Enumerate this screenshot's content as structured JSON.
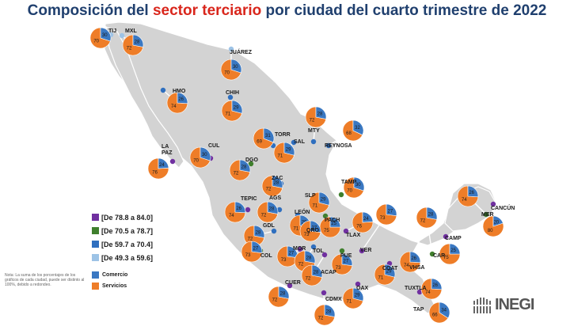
{
  "title": {
    "before": "Composición del ",
    "highlight": "sector terciario",
    "after": " por ciudad del cuarto trimestre de 2022"
  },
  "colors": {
    "comercio": "#3a78c2",
    "servicios": "#ee7d28",
    "land": "#d3d3d3",
    "range1": "#7030a0",
    "range2": "#3f7f2d",
    "range3": "#2f6fbf",
    "range4": "#9dc3e6"
  },
  "legend": {
    "ranges": [
      {
        "label": "[De 78.8 a 84.0]",
        "color": "#7030a0"
      },
      {
        "label": "[De 70.5 a 78.7]",
        "color": "#3f7f2d"
      },
      {
        "label": "[De 59.7 a 70.4]",
        "color": "#2f6fbf"
      },
      {
        "label": "[De 49.3 a 59.6]",
        "color": "#9dc3e6"
      }
    ],
    "series": [
      {
        "label": "Comercio",
        "color": "#3a78c2"
      },
      {
        "label": "Servicios",
        "color": "#ee7d28"
      }
    ]
  },
  "note": "Nota: La suma de los porcentajes de los gráficos de cada ciudad, puede ser distinto al 100%, debido a redondeo.",
  "logo": {
    "text": "INEGI"
  },
  "cities": [
    {
      "name": "TIJ",
      "comercio": 30,
      "servicios": 70,
      "dot": "#9dc3e6"
    },
    {
      "name": "MXL",
      "comercio": 28,
      "servicios": 72,
      "dot": "#9dc3e6"
    },
    {
      "name": "JUÁREZ",
      "comercio": 30,
      "servicios": 70,
      "dot": "#9dc3e6"
    },
    {
      "name": "HMO",
      "comercio": 26,
      "servicios": 74,
      "dot": "#2f6fbf"
    },
    {
      "name": "CHIH",
      "comercio": 29,
      "servicios": 71,
      "dot": "#2f6fbf"
    },
    {
      "name": "TORR",
      "comercio": 31,
      "servicios": 69,
      "dot": "#2f6fbf"
    },
    {
      "name": "MTY",
      "comercio": 28,
      "servicios": 72,
      "dot": "#2f6fbf"
    },
    {
      "name": "REYNOSA",
      "comercio": 32,
      "servicios": 68,
      "dot": "#2f6fbf"
    },
    {
      "name": "SAL",
      "comercio": 29,
      "servicios": 71,
      "dot": "#2f6fbf"
    },
    {
      "name": "LA PAZ",
      "comercio": 24,
      "servicios": 76,
      "dot": "#7030a0"
    },
    {
      "name": "CUL",
      "comercio": 30,
      "servicios": 70,
      "dot": "#7030a0"
    },
    {
      "name": "DGO",
      "comercio": 28,
      "servicios": 72,
      "dot": "#3f7f2d"
    },
    {
      "name": "ZAC",
      "comercio": 28,
      "servicios": 72,
      "dot": "#2f6fbf"
    },
    {
      "name": "TAMP",
      "comercio": 30,
      "servicios": 70,
      "dot": "#3f7f2d"
    },
    {
      "name": "SLP",
      "comercio": 29,
      "servicios": 71,
      "dot": "#2f6fbf"
    },
    {
      "name": "AGS",
      "comercio": 28,
      "servicios": 72,
      "dot": "#2f6fbf"
    },
    {
      "name": "TEPIC",
      "comercio": 26,
      "servicios": 74,
      "dot": "#7030a0"
    },
    {
      "name": "LEÓN",
      "comercio": 29,
      "servicios": 71,
      "dot": "#2f6fbf"
    },
    {
      "name": "PACH",
      "comercio": 25,
      "servicios": 75,
      "dot": "#3f7f2d"
    },
    {
      "name": "GDL",
      "comercio": 28,
      "servicios": 72,
      "dot": "#2f6fbf"
    },
    {
      "name": "QRO",
      "comercio": 27,
      "servicios": 73,
      "dot": "#3f7f2d"
    },
    {
      "name": "TLAX",
      "comercio": 24,
      "servicios": 76,
      "dot": "#7030a0"
    },
    {
      "name": "COL",
      "comercio": 27,
      "servicios": 73,
      "dot": "#3f7f2d"
    },
    {
      "name": "MOR",
      "comercio": 27,
      "servicios": 73,
      "dot": "#7030a0"
    },
    {
      "name": "TOL",
      "comercio": 28,
      "servicios": 72,
      "dot": "#2f6fbf"
    },
    {
      "name": "PUE",
      "comercio": 27,
      "servicios": 73,
      "dot": "#3f7f2d"
    },
    {
      "name": "VER",
      "comercio": 27,
      "servicios": 73,
      "dot": "#7030a0"
    },
    {
      "name": "ACAP",
      "comercio": 28,
      "servicios": 72,
      "dot": "#7030a0"
    },
    {
      "name": "CUER",
      "comercio": 28,
      "servicios": 72,
      "dot": "#7030a0"
    },
    {
      "name": "CDMX",
      "comercio": 28,
      "servicios": 72,
      "dot": "#7030a0"
    },
    {
      "name": "OAX",
      "comercio": 29,
      "servicios": 71,
      "dot": "#7030a0"
    },
    {
      "name": "COAT",
      "comercio": 29,
      "servicios": 71,
      "dot": "#7030a0"
    },
    {
      "name": "VHSA",
      "comercio": 26,
      "servicios": 74,
      "dot": "#7030a0"
    },
    {
      "name": "TUXTLA",
      "comercio": 26,
      "servicios": 74,
      "dot": "#7030a0"
    },
    {
      "name": "TAP",
      "comercio": 34,
      "servicios": 66,
      "dot": "#2f6fbf"
    },
    {
      "name": "CAMP",
      "comercio": 25,
      "servicios": 75,
      "dot": "#7030a0"
    },
    {
      "name": "CAR",
      "comercio": 28,
      "servicios": 72,
      "dot": "#3f7f2d"
    },
    {
      "name": "MER",
      "comercio": 26,
      "servicios": 74,
      "dot": "#3f7f2d"
    },
    {
      "name": "CANCÚN",
      "comercio": 20,
      "servicios": 80,
      "dot": "#7030a0"
    }
  ]
}
